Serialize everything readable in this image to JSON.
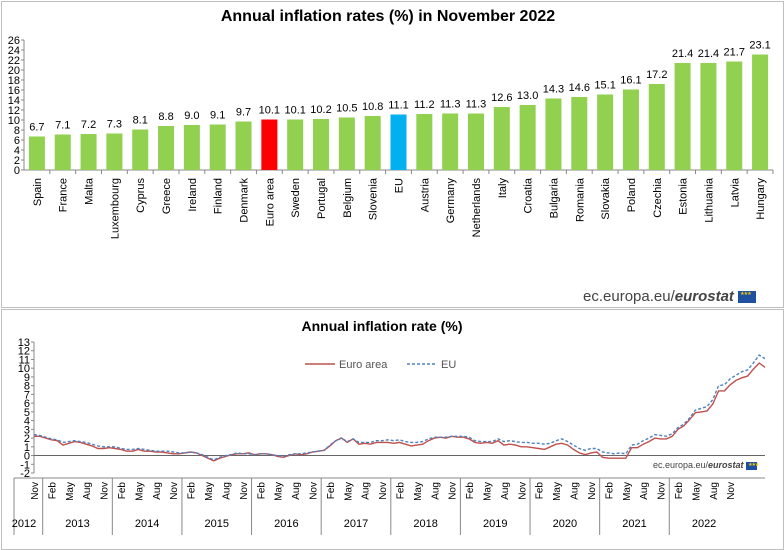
{
  "colors": {
    "bar_default": "#92d050",
    "bar_euro_area": "#ff0000",
    "bar_eu": "#00b0f0",
    "line_euro_area": "#c0504d",
    "line_eu": "#4f81bd"
  },
  "credit": {
    "site": "ec.europa.eu/",
    "brand": "eurostat"
  },
  "chart_data": [
    {
      "type": "bar",
      "title": "Annual inflation rates (%)  in November 2022",
      "categories": [
        "Spain",
        "France",
        "Malta",
        "Luxembourg",
        "Cyprus",
        "Greece",
        "Ireland",
        "Finland",
        "Denmark",
        "Euro area",
        "Sweden",
        "Portugal",
        "Belgium",
        "Slovenia",
        "EU",
        "Austria",
        "Germany",
        "Netherlands",
        "Italy",
        "Croatia",
        "Bulgaria",
        "Romania",
        "Slovakia",
        "Poland",
        "Czechia",
        "Estonia",
        "Lithuania",
        "Latvia",
        "Hungary"
      ],
      "values": [
        6.7,
        7.1,
        7.2,
        7.3,
        8.1,
        8.8,
        9.0,
        9.1,
        9.7,
        10.1,
        10.1,
        10.2,
        10.5,
        10.8,
        11.1,
        11.2,
        11.3,
        11.3,
        12.6,
        13.0,
        14.3,
        14.6,
        15.1,
        16.1,
        17.2,
        21.4,
        21.4,
        21.7,
        23.1
      ],
      "value_labels": [
        "6.7",
        "7.1",
        "7.2",
        "7.3",
        "8.1",
        "8.8",
        "9.0",
        "9.1",
        "9.7",
        "10.1",
        "10.1",
        "10.2",
        "10.5",
        "10.8",
        "11.1",
        "11.2",
        "11.3",
        "11.3",
        "12.6",
        "13.0",
        "14.3",
        "14.6",
        "15.1",
        "16.1",
        "17.2",
        "21.4",
        "21.4",
        "21.7",
        "23.1"
      ],
      "highlight": {
        "Euro area": "red",
        "EU": "blue"
      },
      "ylim": [
        0,
        26
      ],
      "yticks": [
        "0",
        "2",
        "4",
        "6",
        "8",
        "10",
        "12",
        "14",
        "16",
        "18",
        "20",
        "22",
        "24",
        "26"
      ]
    },
    {
      "type": "line",
      "title": "Annual inflation rate (%)",
      "x_month_labels": [
        "Nov",
        "Feb",
        "May",
        "Aug",
        "Nov",
        "Feb",
        "May",
        "Aug",
        "Nov",
        "Feb",
        "May",
        "Aug",
        "Nov",
        "Feb",
        "May",
        "Aug",
        "Nov",
        "Feb",
        "May",
        "Aug",
        "Nov",
        "Feb",
        "May",
        "Aug",
        "Nov",
        "Feb",
        "May",
        "Aug",
        "Nov",
        "Feb",
        "May",
        "Aug",
        "Nov",
        "Feb",
        "May",
        "Aug",
        "Nov",
        "Feb",
        "May",
        "Aug",
        "Nov"
      ],
      "x_year_labels": [
        "2012",
        "2013",
        "2014",
        "2015",
        "2016",
        "2017",
        "2018",
        "2019",
        "2020",
        "2021",
        "2022"
      ],
      "ylim": [
        -2,
        13
      ],
      "yticks": [
        "-2",
        "-1",
        "0",
        "1",
        "2",
        "3",
        "4",
        "5",
        "6",
        "7",
        "8",
        "9",
        "10",
        "11",
        "12",
        "13"
      ],
      "grid": false,
      "legend_position": "top-center",
      "series": [
        {
          "name": "Euro area",
          "style": "solid",
          "values": [
            2.2,
            2.2,
            2.0,
            1.8,
            1.7,
            1.2,
            1.4,
            1.6,
            1.5,
            1.3,
            1.1,
            0.8,
            0.8,
            0.9,
            0.8,
            0.7,
            0.5,
            0.5,
            0.7,
            0.5,
            0.5,
            0.4,
            0.4,
            0.3,
            0.2,
            0.2,
            0.3,
            0.4,
            0.3,
            0.0,
            -0.3,
            -0.6,
            -0.3,
            -0.1,
            0.1,
            0.2,
            0.2,
            0.3,
            0.1,
            0.2,
            0.2,
            0.1,
            -0.1,
            -0.2,
            0.0,
            0.2,
            0.1,
            0.2,
            0.4,
            0.5,
            0.6,
            1.1,
            1.7,
            2.0,
            1.5,
            1.9,
            1.3,
            1.4,
            1.3,
            1.5,
            1.5,
            1.5,
            1.4,
            1.5,
            1.3,
            1.1,
            1.2,
            1.3,
            1.7,
            2.0,
            2.1,
            2.0,
            2.2,
            2.1,
            2.1,
            1.9,
            1.5,
            1.4,
            1.5,
            1.4,
            1.7,
            1.2,
            1.3,
            1.2,
            1.0,
            1.0,
            0.9,
            0.8,
            0.7,
            1.0,
            1.3,
            1.4,
            1.2,
            0.7,
            0.3,
            0.1,
            0.3,
            0.4,
            -0.2,
            -0.3,
            -0.3,
            -0.3,
            -0.3,
            0.9,
            0.9,
            1.3,
            1.6,
            2.0,
            1.9,
            1.9,
            2.2,
            3.0,
            3.4,
            4.1,
            4.9,
            5.0,
            5.1,
            5.9,
            7.4,
            7.4,
            8.1,
            8.6,
            8.9,
            9.1,
            9.9,
            10.6,
            10.1
          ]
        },
        {
          "name": "EU",
          "style": "dashed",
          "values": [
            2.4,
            2.3,
            2.1,
            1.9,
            1.8,
            1.5,
            1.6,
            1.7,
            1.6,
            1.5,
            1.3,
            1.1,
            1.0,
            1.0,
            1.0,
            0.8,
            0.7,
            0.7,
            0.8,
            0.7,
            0.6,
            0.5,
            0.5,
            0.5,
            0.4,
            0.3,
            0.3,
            0.4,
            0.3,
            0.1,
            -0.2,
            -0.5,
            -0.2,
            0.0,
            0.1,
            0.3,
            0.2,
            0.2,
            0.1,
            0.2,
            0.2,
            0.1,
            0.0,
            -0.1,
            0.1,
            0.2,
            0.2,
            0.3,
            0.4,
            0.5,
            0.6,
            1.2,
            1.7,
            2.0,
            1.6,
            1.9,
            1.5,
            1.5,
            1.5,
            1.7,
            1.7,
            1.8,
            1.7,
            1.8,
            1.6,
            1.5,
            1.5,
            1.6,
            1.9,
            2.1,
            2.1,
            2.1,
            2.2,
            2.2,
            2.2,
            2.1,
            1.7,
            1.6,
            1.6,
            1.6,
            1.9,
            1.6,
            1.7,
            1.6,
            1.5,
            1.5,
            1.4,
            1.4,
            1.3,
            1.4,
            1.7,
            1.9,
            1.6,
            1.2,
            0.8,
            0.6,
            0.8,
            0.8,
            0.4,
            0.3,
            0.2,
            0.3,
            0.2,
            1.2,
            1.3,
            1.7,
            2.0,
            2.4,
            2.3,
            2.2,
            2.5,
            3.2,
            3.6,
            4.3,
            5.2,
            5.4,
            5.6,
            6.4,
            8.0,
            8.1,
            8.8,
            9.2,
            9.6,
            9.8,
            10.6,
            11.5,
            11.1
          ]
        }
      ]
    }
  ]
}
